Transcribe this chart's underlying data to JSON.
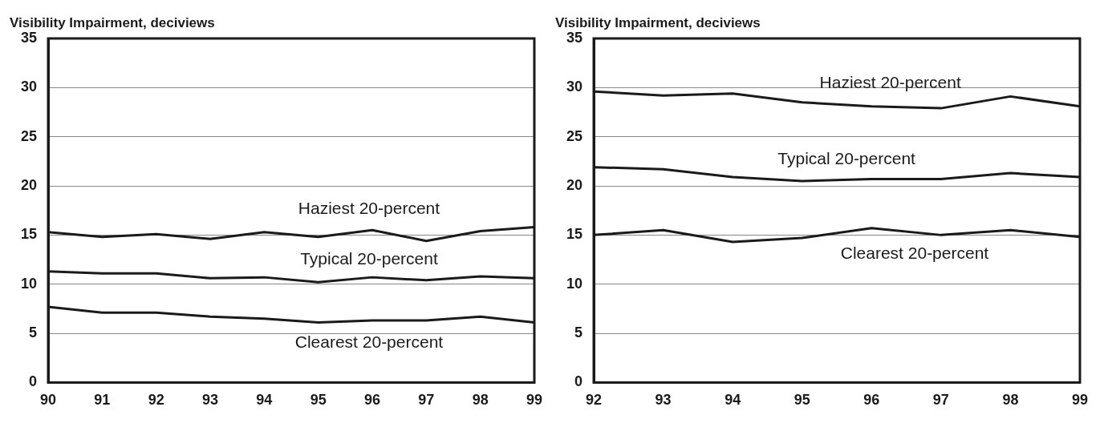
{
  "chart_data": [
    {
      "type": "line",
      "ylabel": "Visibility Impairment, deciviews",
      "categories": [
        "90",
        "91",
        "92",
        "93",
        "94",
        "95",
        "96",
        "97",
        "98",
        "99"
      ],
      "ylim": [
        0,
        35
      ],
      "yticks": [
        0,
        5,
        10,
        15,
        20,
        25,
        30,
        35
      ],
      "grid": "y",
      "legend": false,
      "marker": "none",
      "series": [
        {
          "name": "Haziest 20-percent",
          "color": "#1a1a1a",
          "values": [
            15.3,
            14.8,
            15.1,
            14.6,
            15.3,
            14.8,
            15.5,
            14.4,
            15.4,
            15.8
          ]
        },
        {
          "name": "Typical 20-percent",
          "color": "#1a1a1a",
          "values": [
            11.3,
            11.1,
            11.1,
            10.6,
            10.7,
            10.2,
            10.7,
            10.4,
            10.8,
            10.6
          ]
        },
        {
          "name": "Clearest 20-percent",
          "color": "#1a1a1a",
          "values": [
            7.7,
            7.1,
            7.1,
            6.7,
            6.5,
            6.1,
            6.3,
            6.3,
            6.7,
            6.1
          ]
        }
      ]
    },
    {
      "type": "line",
      "ylabel": "Visibility Impairment, deciviews",
      "categories": [
        "92",
        "93",
        "94",
        "95",
        "96",
        "97",
        "98",
        "99"
      ],
      "ylim": [
        0,
        35
      ],
      "yticks": [
        0,
        5,
        10,
        15,
        20,
        25,
        30,
        35
      ],
      "grid": "y",
      "legend": false,
      "marker": "none",
      "series": [
        {
          "name": "Haziest 20-percent",
          "color": "#1a1a1a",
          "values": [
            29.6,
            29.2,
            29.4,
            28.5,
            28.1,
            27.9,
            29.1,
            28.1
          ]
        },
        {
          "name": "Typical 20-percent",
          "color": "#1a1a1a",
          "values": [
            21.9,
            21.7,
            20.9,
            20.5,
            20.7,
            20.7,
            21.3,
            20.9
          ]
        },
        {
          "name": "Clearest 20-percent",
          "color": "#1a1a1a",
          "values": [
            15.0,
            15.5,
            14.3,
            14.7,
            15.7,
            15.0,
            15.5,
            14.8
          ]
        }
      ]
    }
  ]
}
